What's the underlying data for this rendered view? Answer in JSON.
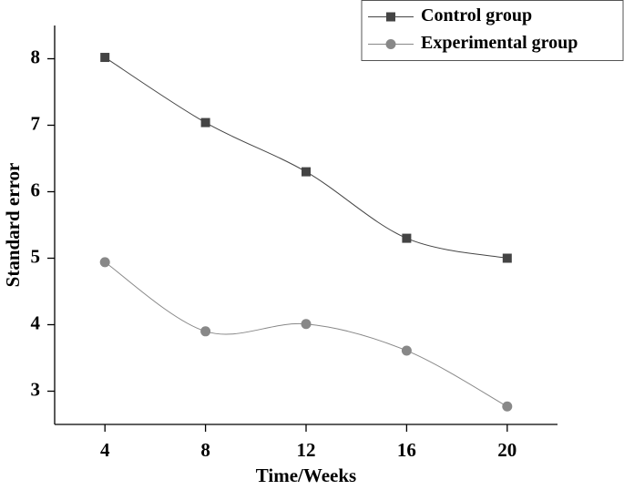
{
  "chart_data": {
    "type": "line",
    "x_label": "Time/Weeks",
    "y_label": "Standard error",
    "x": [
      4,
      8,
      12,
      16,
      20
    ],
    "series": [
      {
        "name": "Control group",
        "color": "#444444",
        "marker": "square",
        "values": [
          8.02,
          7.04,
          6.3,
          5.3,
          5.0
        ]
      },
      {
        "name": "Experimental group",
        "color": "#888888",
        "marker": "circle",
        "values": [
          4.94,
          3.9,
          4.01,
          3.61,
          2.77
        ]
      }
    ],
    "xlim": [
      2,
      22
    ],
    "xticks": [
      4,
      8,
      12,
      16,
      20
    ],
    "ylim": [
      2.5,
      8.5
    ],
    "yticks": [
      3,
      4,
      5,
      6,
      7,
      8
    ],
    "smooth": true,
    "legend": "upper right"
  }
}
